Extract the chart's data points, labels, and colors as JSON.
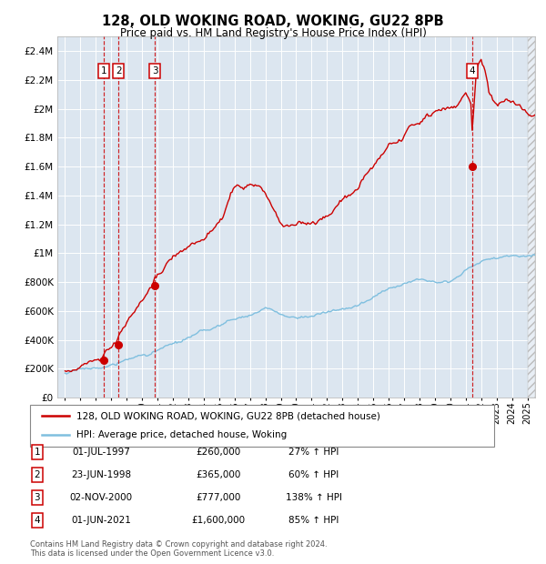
{
  "title": "128, OLD WOKING ROAD, WOKING, GU22 8PB",
  "subtitle": "Price paid vs. HM Land Registry's House Price Index (HPI)",
  "ylim": [
    0,
    2500000
  ],
  "yticks": [
    0,
    200000,
    400000,
    600000,
    800000,
    1000000,
    1200000,
    1400000,
    1600000,
    1800000,
    2000000,
    2200000,
    2400000
  ],
  "ytick_labels": [
    "£0",
    "£200K",
    "£400K",
    "£600K",
    "£800K",
    "£1M",
    "£1.2M",
    "£1.4M",
    "£1.6M",
    "£1.8M",
    "£2M",
    "£2.2M",
    "£2.4M"
  ],
  "background_color": "#ffffff",
  "plot_bg_color": "#dce6f0",
  "grid_color": "#ffffff",
  "hpi_line_color": "#7fbfdf",
  "price_line_color": "#cc0000",
  "sale_dot_color": "#cc0000",
  "vline_color": "#cc0000",
  "transactions": [
    {
      "num": 1,
      "date": "01-JUL-1997",
      "price": 260000,
      "pct": "27%",
      "x_year": 1997.5
    },
    {
      "num": 2,
      "date": "23-JUN-1998",
      "price": 365000,
      "pct": "60%",
      "x_year": 1998.47
    },
    {
      "num": 3,
      "date": "02-NOV-2000",
      "price": 777000,
      "pct": "138%",
      "x_year": 2000.83
    },
    {
      "num": 4,
      "date": "01-JUN-2021",
      "price": 1600000,
      "pct": "85%",
      "x_year": 2021.41
    }
  ],
  "legend_line1": "128, OLD WOKING ROAD, WOKING, GU22 8PB (detached house)",
  "legend_line2": "HPI: Average price, detached house, Woking",
  "footer1": "Contains HM Land Registry data © Crown copyright and database right 2024.",
  "footer2": "This data is licensed under the Open Government Licence v3.0.",
  "xlim_start": 1994.5,
  "xlim_end": 2025.5
}
